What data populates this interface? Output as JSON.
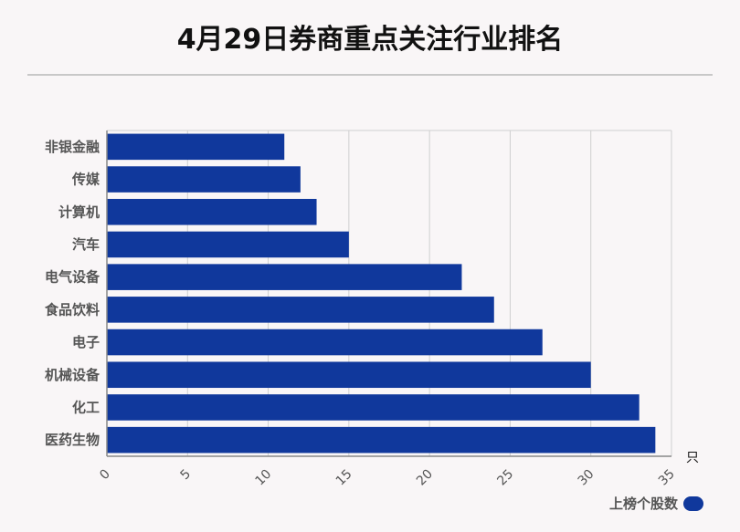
{
  "title": "4月29日券商重点关注行业排名",
  "colors": {
    "bar": "#10389c",
    "grid": "#d0d0d0",
    "axis": "#888888"
  },
  "chart_data": {
    "type": "bar",
    "orientation": "horizontal",
    "categories": [
      "非银金融",
      "传媒",
      "计算机",
      "汽车",
      "电气设备",
      "食品饮料",
      "电子",
      "机械设备",
      "化工",
      "医药生物"
    ],
    "series": [
      {
        "name": "上榜个股数",
        "values": [
          11,
          12,
          13,
          15,
          22,
          24,
          27,
          30,
          33,
          34
        ]
      }
    ],
    "xlim": [
      0,
      35
    ],
    "xticks": [
      0,
      5,
      10,
      15,
      20,
      25,
      30,
      35
    ],
    "x_unit": "只",
    "grid": true,
    "legend_position": "bottom-right"
  }
}
